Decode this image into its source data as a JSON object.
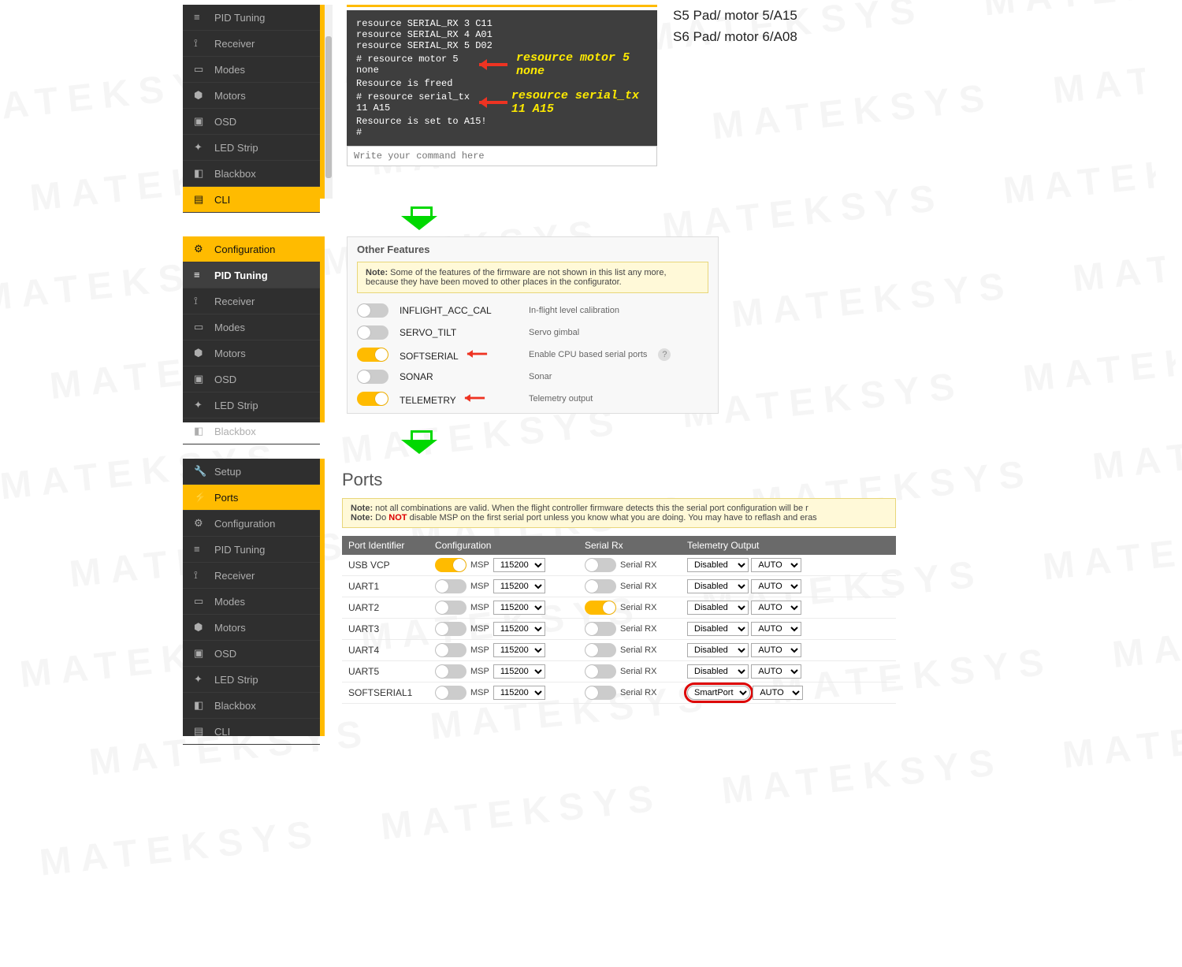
{
  "watermark_text": "MATEKSYS   MATEKSYS   MATEKSYS   MATEKSYS   MATEKSYS\n   MATEKSYS   MATEKSYS   MATEKSYS   MATEKSYS   MATEKSYS\nMATEKSYS   MATEKSYS   MATEKSYS   MATEKSYS   MATEKSYS\n   MATEKSYS   MATEKSYS   MATEKSYS   MATEKSYS   MATEKSYS\nMATEKSYS   MATEKSYS   MATEKSYS   MATEKSYS   MATEKSYS\n   MATEKSYS   MATEKSYS   MATEKSYS   MATEKSYS   MATEKSYS\nMATEKSYS   MATEKSYS   MATEKSYS   MATEKSYS   MATEKSYS\n   MATEKSYS   MATEKSYS   MATEKSYS   MATEKSYS   MATEKSYS\nMATEKSYS   MATEKSYS   MATEKSYS   MATEKSYS   MATEKSYS",
  "sidebar": {
    "panel1": {
      "items": [
        {
          "label": "PID Tuning"
        },
        {
          "label": "Receiver"
        },
        {
          "label": "Modes"
        },
        {
          "label": "Motors"
        },
        {
          "label": "OSD"
        },
        {
          "label": "LED Strip"
        },
        {
          "label": "Blackbox"
        },
        {
          "label": "CLI"
        }
      ],
      "selected_index": 7
    },
    "panel2": {
      "items": [
        {
          "label": "Configuration"
        },
        {
          "label": "PID Tuning"
        },
        {
          "label": "Receiver"
        },
        {
          "label": "Modes"
        },
        {
          "label": "Motors"
        },
        {
          "label": "OSD"
        },
        {
          "label": "LED Strip"
        },
        {
          "label": "Blackbox"
        }
      ],
      "config_selected": 0,
      "pid_selected": 1
    },
    "panel3": {
      "items": [
        {
          "label": "Setup"
        },
        {
          "label": "Ports"
        },
        {
          "label": "Configuration"
        },
        {
          "label": "PID Tuning"
        },
        {
          "label": "Receiver"
        },
        {
          "label": "Modes"
        },
        {
          "label": "Motors"
        },
        {
          "label": "OSD"
        },
        {
          "label": "LED Strip"
        },
        {
          "label": "Blackbox"
        },
        {
          "label": "CLI"
        }
      ],
      "selected_index": 1
    }
  },
  "cli": {
    "lines": [
      "resource SERIAL_RX 3 C11",
      "resource SERIAL_RX 4 A01",
      "resource SERIAL_RX 5 D02",
      "",
      "# resource motor 5 none",
      "Resource is freed",
      "",
      "# resource serial_tx 11 A15",
      "",
      "Resource is set to A15!",
      "",
      "#"
    ],
    "input_placeholder": "Write your command here",
    "annot1": "resource motor 5 none",
    "annot2": "resource serial_tx 11 A15"
  },
  "pad_notes": {
    "line1": "S5 Pad/ motor 5/A15",
    "line2": "S6 Pad/ motor 6/A08"
  },
  "features": {
    "title": "Other Features",
    "note_bold": "Note:",
    "note_text": " Some of the features of the firmware are not shown in this list any more, because they have been moved to other places in the configurator.",
    "rows": [
      {
        "name": "INFLIGHT_ACC_CAL",
        "desc": "In-flight level calibration",
        "on": false,
        "arrow": false
      },
      {
        "name": "SERVO_TILT",
        "desc": "Servo gimbal",
        "on": false,
        "arrow": false
      },
      {
        "name": "SOFTSERIAL",
        "desc": "Enable CPU based serial ports",
        "on": true,
        "arrow": true,
        "help": true
      },
      {
        "name": "SONAR",
        "desc": "Sonar",
        "on": false,
        "arrow": false
      },
      {
        "name": "TELEMETRY",
        "desc": "Telemetry output",
        "on": true,
        "arrow": true
      }
    ]
  },
  "ports": {
    "title": "Ports",
    "note1_bold": "Note:",
    "note1": " not all combinations are valid. When the flight controller firmware detects this the serial port configuration will be r",
    "note2_bold": "Note:",
    "note2a": " Do ",
    "note2_not": "NOT",
    "note2b": " disable MSP on the first serial port unless you know what you are doing. You may have to reflash and eras",
    "headers": [
      "Port Identifier",
      "Configuration",
      "Serial Rx",
      "Telemetry Output"
    ],
    "msp_label": "MSP",
    "rx_label": "Serial RX",
    "baud_default": "115200",
    "auto_default": "AUTO",
    "rows": [
      {
        "id": "USB VCP",
        "msp_on": true,
        "rx_on": false,
        "tele": "Disabled"
      },
      {
        "id": "UART1",
        "msp_on": false,
        "rx_on": false,
        "tele": "Disabled"
      },
      {
        "id": "UART2",
        "msp_on": false,
        "rx_on": true,
        "tele": "Disabled"
      },
      {
        "id": "UART3",
        "msp_on": false,
        "rx_on": false,
        "tele": "Disabled"
      },
      {
        "id": "UART4",
        "msp_on": false,
        "rx_on": false,
        "tele": "Disabled"
      },
      {
        "id": "UART5",
        "msp_on": false,
        "rx_on": false,
        "tele": "Disabled"
      },
      {
        "id": "SOFTSERIAL1",
        "msp_on": false,
        "rx_on": false,
        "tele": "SmartPort",
        "circled": true
      }
    ]
  },
  "colors": {
    "accent": "#ffbb00",
    "sidebar_bg": "#2f2f2f",
    "console_bg": "#3e3e3e",
    "annot_yellow": "#ffeb00",
    "arrow_red": "#e32",
    "green": "#00d800",
    "note_bg": "#fff9d8",
    "table_header": "#6a6a6a"
  }
}
